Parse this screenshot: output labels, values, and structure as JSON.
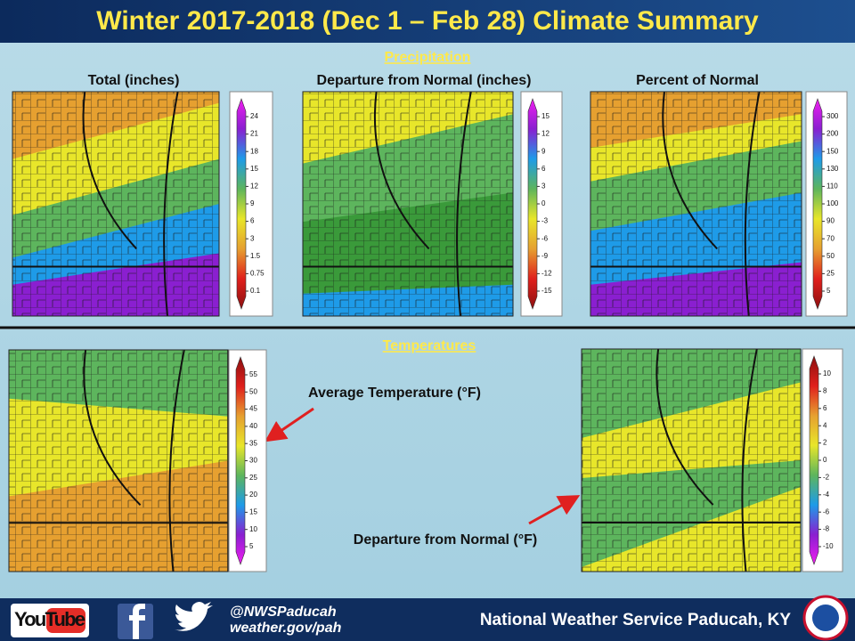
{
  "header": {
    "title": "Winter 2017-2018 (Dec 1 – Feb 28) Climate Summary"
  },
  "precipitation": {
    "heading": "Precipitation",
    "maps": [
      {
        "label": "Total (inches)",
        "scale": [
          24,
          21,
          18,
          15,
          12,
          9,
          6,
          3,
          1.5,
          0.75,
          0.1
        ]
      },
      {
        "label": "Departure from Normal (inches)",
        "scale": [
          15,
          12,
          9,
          6,
          3,
          0,
          -3,
          -6,
          -9,
          -12,
          -15
        ]
      },
      {
        "label": "Percent of Normal",
        "scale": [
          300,
          200,
          150,
          130,
          110,
          100,
          90,
          70,
          50,
          25,
          5
        ]
      }
    ]
  },
  "temperatures": {
    "heading": "Temperatures",
    "maps": [
      {
        "label": "Average Temperature (°F)",
        "scale": [
          55,
          50,
          45,
          40,
          35,
          30,
          25,
          20,
          15,
          10,
          5
        ]
      },
      {
        "label": "Departure from Normal (°F)",
        "scale": [
          10,
          8,
          6,
          4,
          2,
          0,
          -2,
          -4,
          -6,
          -8,
          -10
        ]
      }
    ]
  },
  "footer": {
    "youtube": "YouTube",
    "handle": "@NWSPaducah",
    "url": "weather.gov/pah",
    "office": "National Weather Service Paducah, KY"
  }
}
